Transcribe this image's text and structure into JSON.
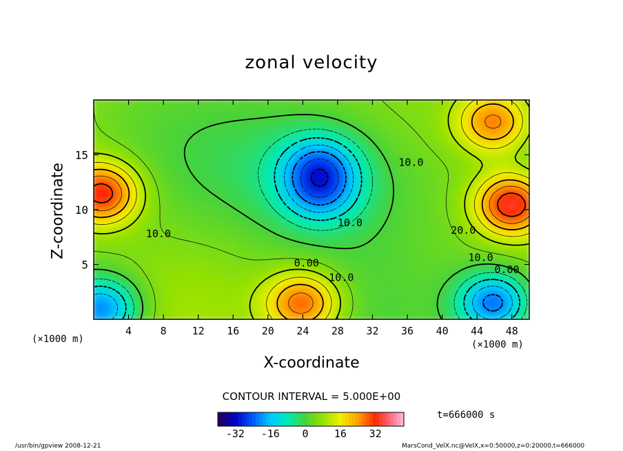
{
  "chart_data": {
    "type": "heatmap",
    "title": "zonal velocity",
    "xlabel": "X-coordinate",
    "ylabel": "Z-coordinate",
    "x_unit": "(×1000 m)",
    "z_unit": "(×1000 m)",
    "xlim": [
      0,
      50
    ],
    "ylim": [
      0,
      20
    ],
    "x_ticks": [
      4,
      8,
      12,
      16,
      20,
      24,
      28,
      32,
      36,
      40,
      44,
      48
    ],
    "y_ticks": [
      5,
      10,
      15
    ],
    "contour_interval_text": "CONTOUR INTERVAL = 5.000E+00",
    "contour_labels": [
      "10.0",
      "0.00",
      "10.0",
      "10.0",
      "20.0",
      "10.0",
      "0.00",
      "10.0"
    ],
    "colorbar": {
      "ticks": [
        -32,
        -16,
        0,
        16,
        32
      ],
      "range": [
        -40,
        45
      ]
    },
    "features": [
      {
        "x": 1,
        "z": 11.5,
        "value": 35
      },
      {
        "x": 48,
        "z": 10.5,
        "value": 38
      },
      {
        "x": 26,
        "z": 14,
        "value": -22
      },
      {
        "x": 26,
        "z": 11.5,
        "value": -18
      },
      {
        "x": 1,
        "z": 1,
        "value": -32
      },
      {
        "x": 46,
        "z": 1.5,
        "value": -35
      },
      {
        "x": 24,
        "z": 1.5,
        "value": 30
      },
      {
        "x": 46,
        "z": 18,
        "value": 28
      }
    ]
  },
  "time_label": "t=666000 s",
  "footer": {
    "left": "/usr/bin/gpview   2008-12-21",
    "right": "MarsCond_VelX.nc@VelX,x=0:50000,z=0:20000,t=666000"
  },
  "colors": {
    "frame": "#000000",
    "background": "#ffffff"
  }
}
